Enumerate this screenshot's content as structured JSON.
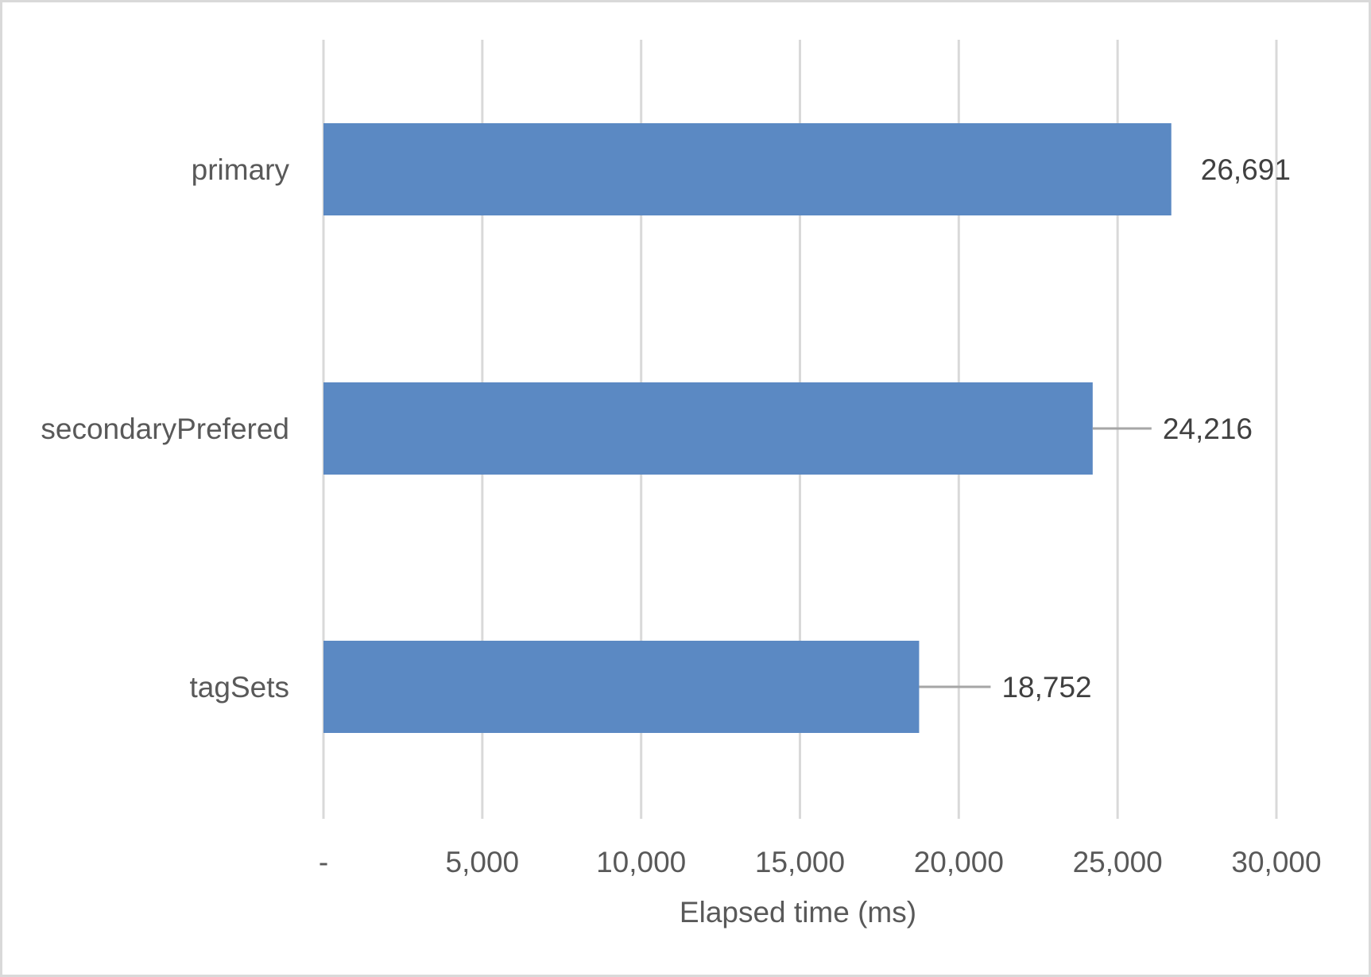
{
  "chart_data": {
    "type": "bar",
    "orientation": "horizontal",
    "categories": [
      "primary",
      "secondaryPrefered",
      "tagSets"
    ],
    "values": [
      26691,
      24216,
      18752
    ],
    "value_labels": [
      "26,691",
      "24,216",
      "18,752"
    ],
    "xlabel": "Elapsed time (ms)",
    "ylabel": "",
    "xlim": [
      0,
      30000
    ],
    "x_ticks": [
      0,
      5000,
      10000,
      15000,
      20000,
      25000,
      30000
    ],
    "x_tick_labels": [
      "-",
      "5,000",
      "10,000",
      "15,000",
      "20,000",
      "25,000",
      "30,000"
    ],
    "grid": "vertical",
    "legend": "none",
    "colors": {
      "bar": "#5b89c3",
      "grid": "#d9d9d9",
      "leader_line": "#a6a6a6",
      "border": "#d9d9d9"
    }
  }
}
